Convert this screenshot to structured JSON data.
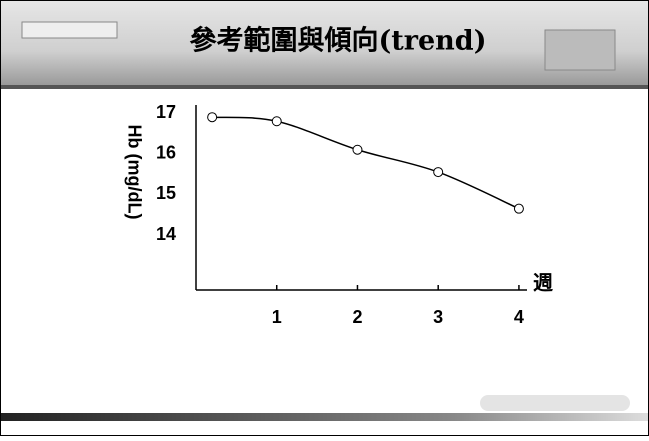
{
  "chart_data": {
    "type": "line",
    "title": "參考範圍與傾向(trend)",
    "y_label": "Hb (mg/dL)",
    "x_label": "週",
    "x": [
      0.2,
      1,
      2,
      3,
      4
    ],
    "values": [
      16.9,
      16.8,
      16.1,
      15.55,
      14.65
    ],
    "xlim": [
      0,
      4.1
    ],
    "xticks": [
      1,
      2,
      3,
      4
    ],
    "ylim": [
      12.65,
      17.2
    ],
    "yticks": [
      14,
      15,
      16,
      17
    ],
    "color": "#000000",
    "grid": false
  }
}
